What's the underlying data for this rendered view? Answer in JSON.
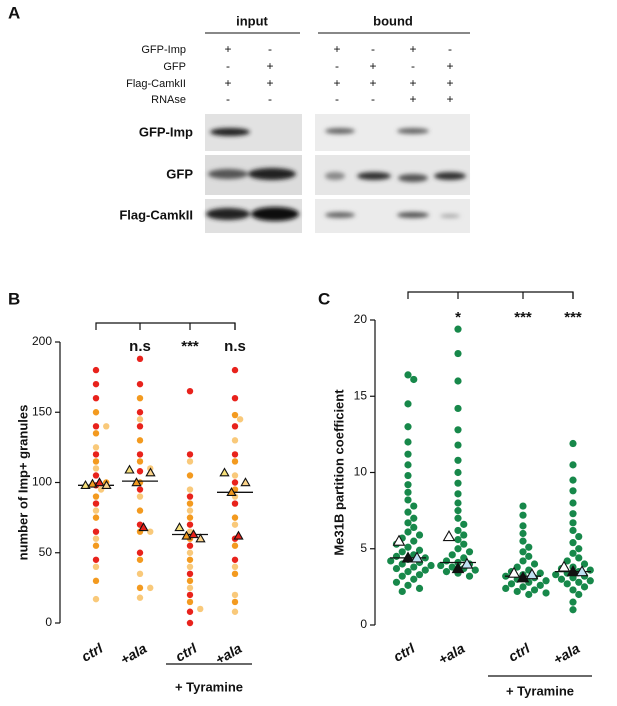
{
  "panel_a": {
    "panel": "A",
    "headers": [
      "input",
      "bound"
    ],
    "row_labels": [
      "GFP-Imp",
      "GFP",
      "Flag-CamkII",
      "RNAse"
    ],
    "signs": [
      [
        "+",
        "-",
        "+",
        "-",
        "+",
        "-"
      ],
      [
        "-",
        "+",
        "-",
        "+",
        "-",
        "+"
      ],
      [
        "+",
        "+",
        "+",
        "+",
        "+",
        "+"
      ],
      [
        "-",
        "-",
        "-",
        "-",
        "+",
        "+"
      ]
    ],
    "blot_labels": [
      "GFP-Imp",
      "GFP",
      "Flag-CamkII"
    ]
  },
  "chart_data": [
    {
      "type": "strip",
      "panel": "B",
      "ylabel": "number of Imp+ granules",
      "categories": [
        "ctrl",
        "+ala",
        "ctrl",
        "+ala"
      ],
      "ylim": [
        0,
        200
      ],
      "yticks": [
        0,
        50,
        100,
        150,
        200
      ],
      "series": [
        {
          "color": "#e8221c",
          "values": [
            [
              180,
              170,
              160,
              140,
              120,
              105,
              98,
              85,
              65,
              45
            ],
            [
              188,
              170,
              150,
              140,
              120,
              108,
              95,
              70,
              50
            ],
            [
              165,
              120,
              90,
              70,
              55,
              35,
              20,
              8,
              0
            ],
            [
              180,
              160,
              140,
              120,
              100,
              85,
              60,
              45
            ]
          ]
        },
        {
          "color": "#f39a1f",
          "values": [
            [
              150,
              135,
              115,
              100,
              90,
              75,
              55,
              30
            ],
            [
              160,
              130,
              115,
              100,
              80,
              65,
              45,
              25
            ],
            [
              105,
              85,
              75,
              60,
              45,
              30,
              15
            ],
            [
              148,
              115,
              95,
              75,
              55,
              35,
              15
            ]
          ]
        },
        {
          "color": "#f9c97a",
          "values": [
            [
              140,
              125,
              110,
              95,
              80,
              60,
              40,
              17
            ],
            [
              145,
              110,
              90,
              65,
              35,
              25,
              18
            ],
            [
              115,
              95,
              80,
              65,
              50,
              40,
              25,
              10
            ],
            [
              145,
              130,
              105,
              90,
              70,
              40,
              20,
              8
            ]
          ]
        }
      ],
      "replicate_means": [
        {
          "color": "#f7e07a",
          "values": [
            98,
            109,
            68,
            107
          ]
        },
        {
          "color": "#f39a1f",
          "values": [
            99,
            100,
            62,
            93
          ]
        },
        {
          "color": "#e8221c",
          "values": [
            100,
            68,
            63,
            62
          ]
        },
        {
          "color": "#fbd38a",
          "values": [
            98,
            107,
            60,
            100
          ]
        }
      ],
      "medians": [
        98,
        101,
        63,
        93
      ],
      "significance": [
        null,
        "n.s",
        "***",
        "n.s"
      ],
      "group_label": "+ Tyramine"
    },
    {
      "type": "strip",
      "panel": "C",
      "ylabel": "Me31B partition coefficient",
      "categories": [
        "ctrl",
        "+ala",
        "ctrl",
        "+ala"
      ],
      "ylim": [
        0,
        20
      ],
      "yticks": [
        0,
        5,
        10,
        15,
        20
      ],
      "series": [
        {
          "color": "#17884a",
          "values": [
            [
              16.4,
              16.1,
              14.5,
              13.0,
              12.0,
              11.2,
              10.5,
              9.8,
              9.2,
              8.7,
              8.2,
              7.8,
              7.4,
              7.0,
              6.7,
              6.4,
              6.1,
              5.9,
              5.7,
              5.5,
              5.3,
              5.1,
              4.9,
              4.8,
              4.6,
              4.5,
              4.4,
              4.3,
              4.2,
              4.1,
              4.0,
              3.9,
              3.8,
              3.7,
              3.6,
              3.5,
              3.3,
              3.2,
              3.0,
              2.8,
              2.6,
              2.4,
              2.2
            ],
            [
              19.4,
              17.8,
              16.0,
              14.2,
              12.8,
              11.8,
              10.8,
              10.0,
              9.3,
              8.6,
              8.0,
              7.5,
              7.0,
              6.6,
              6.2,
              5.9,
              5.6,
              5.3,
              5.0,
              4.8,
              4.6,
              4.4,
              4.2,
              4.1,
              4.0,
              3.9,
              3.8,
              3.7,
              3.6,
              3.5,
              3.4,
              3.2
            ],
            [
              7.8,
              7.2,
              6.5,
              6.0,
              5.5,
              5.1,
              4.8,
              4.5,
              4.2,
              4.0,
              3.8,
              3.6,
              3.5,
              3.4,
              3.3,
              3.2,
              3.1,
              3.0,
              2.9,
              2.8,
              2.7,
              2.6,
              2.5,
              2.4,
              2.3,
              2.2,
              2.1,
              2.0
            ],
            [
              11.9,
              10.5,
              9.5,
              8.8,
              8.0,
              7.3,
              6.7,
              6.2,
              5.8,
              5.4,
              5.0,
              4.7,
              4.4,
              4.2,
              4.0,
              3.8,
              3.7,
              3.6,
              3.5,
              3.4,
              3.3,
              3.2,
              3.1,
              3.0,
              2.9,
              2.8,
              2.7,
              2.5,
              2.3,
              2.0,
              1.5,
              1.0
            ]
          ]
        }
      ],
      "replicate_means": [
        {
          "color": "#ffffff",
          "values": [
            5.5,
            5.8,
            3.4,
            3.8
          ]
        },
        {
          "color": "#111111",
          "values": [
            4.4,
            3.7,
            3.1,
            3.5
          ]
        },
        {
          "color": "#bfe0f2",
          "values": [
            4.4,
            4.0,
            3.3,
            3.5
          ]
        }
      ],
      "medians": [
        4.4,
        4.1,
        3.2,
        3.5
      ],
      "significance": [
        null,
        "*",
        "***",
        "***"
      ],
      "group_label": "+ Tyramine"
    }
  ]
}
